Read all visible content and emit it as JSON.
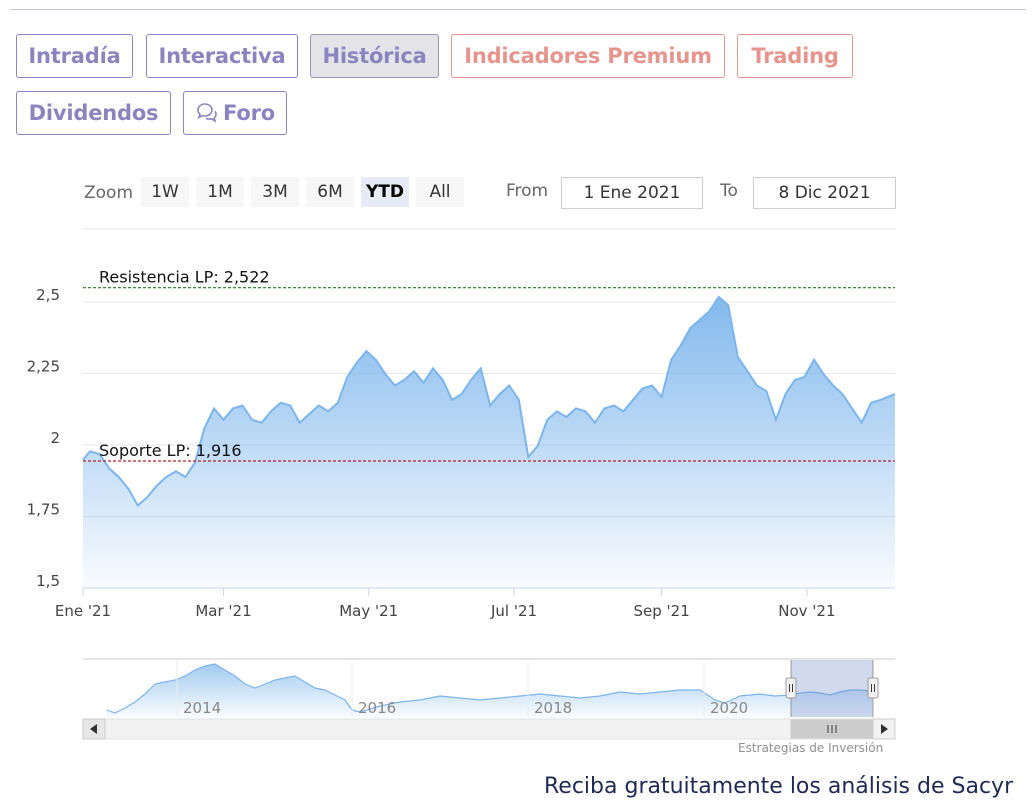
{
  "tabs": [
    {
      "label": "Intradía",
      "style": "purple"
    },
    {
      "label": "Interactiva",
      "style": "purple"
    },
    {
      "label": "Histórica",
      "style": "active"
    },
    {
      "label": "Indicadores Premium",
      "style": "orange"
    },
    {
      "label": "Trading",
      "style": "orange"
    },
    {
      "label": "Dividendos",
      "style": "purple"
    },
    {
      "label": "Foro",
      "style": "purple",
      "icon": "chat-bubbles-icon"
    }
  ],
  "range_selector": {
    "zoom_label": "Zoom",
    "buttons": [
      "1W",
      "1M",
      "3M",
      "6M",
      "YTD",
      "All"
    ],
    "selected": "YTD",
    "from_label": "From",
    "from_value": "1 Ene 2021",
    "to_label": "To",
    "to_value": "8 Dic 2021"
  },
  "chart_data": {
    "type": "area",
    "x_ticks": [
      "Ene '21",
      "Mar '21",
      "May '21",
      "Jul '21",
      "Sep '21",
      "Nov '21"
    ],
    "y_ticks": [
      "1,5",
      "1,75",
      "2",
      "2,25",
      "2,5"
    ],
    "ylim": [
      1.5,
      2.5
    ],
    "series": [
      {
        "x": [
          "2021-01-01",
          "2021-01-04",
          "2021-01-08",
          "2021-01-12",
          "2021-01-16",
          "2021-01-20",
          "2021-01-24",
          "2021-01-28",
          "2021-02-01",
          "2021-02-05",
          "2021-02-09",
          "2021-02-13",
          "2021-02-17",
          "2021-02-21",
          "2021-02-25",
          "2021-03-01",
          "2021-03-05",
          "2021-03-09",
          "2021-03-13",
          "2021-03-17",
          "2021-03-21",
          "2021-03-25",
          "2021-03-29",
          "2021-04-02",
          "2021-04-06",
          "2021-04-10",
          "2021-04-14",
          "2021-04-18",
          "2021-04-22",
          "2021-04-26",
          "2021-04-30",
          "2021-05-04",
          "2021-05-08",
          "2021-05-12",
          "2021-05-16",
          "2021-05-20",
          "2021-05-24",
          "2021-05-28",
          "2021-06-01",
          "2021-06-05",
          "2021-06-09",
          "2021-06-13",
          "2021-06-17",
          "2021-06-21",
          "2021-06-25",
          "2021-06-29",
          "2021-07-03",
          "2021-07-07",
          "2021-07-11",
          "2021-07-15",
          "2021-07-19",
          "2021-07-23",
          "2021-07-27",
          "2021-07-31",
          "2021-08-04",
          "2021-08-08",
          "2021-08-12",
          "2021-08-16",
          "2021-08-20",
          "2021-08-24",
          "2021-08-28",
          "2021-09-01",
          "2021-09-05",
          "2021-09-09",
          "2021-09-13",
          "2021-09-17",
          "2021-09-21",
          "2021-09-25",
          "2021-09-29",
          "2021-10-03",
          "2021-10-07",
          "2021-10-11",
          "2021-10-15",
          "2021-10-19",
          "2021-10-23",
          "2021-10-27",
          "2021-10-31",
          "2021-11-04",
          "2021-11-08",
          "2021-11-12",
          "2021-11-16",
          "2021-11-20",
          "2021-11-24",
          "2021-11-28",
          "2021-12-02",
          "2021-12-08"
        ],
        "values": [
          1.92,
          1.95,
          1.94,
          1.89,
          1.86,
          1.82,
          1.76,
          1.79,
          1.83,
          1.86,
          1.88,
          1.86,
          1.91,
          2.03,
          2.1,
          2.06,
          2.1,
          2.11,
          2.06,
          2.05,
          2.09,
          2.12,
          2.11,
          2.05,
          2.08,
          2.11,
          2.09,
          2.12,
          2.21,
          2.26,
          2.3,
          2.27,
          2.22,
          2.18,
          2.2,
          2.23,
          2.19,
          2.24,
          2.2,
          2.13,
          2.15,
          2.2,
          2.24,
          2.11,
          2.15,
          2.18,
          2.13,
          1.93,
          1.97,
          2.06,
          2.09,
          2.07,
          2.1,
          2.09,
          2.05,
          2.1,
          2.11,
          2.09,
          2.13,
          2.17,
          2.18,
          2.14,
          2.27,
          2.32,
          2.38,
          2.41,
          2.44,
          2.49,
          2.46,
          2.28,
          2.23,
          2.18,
          2.16,
          2.06,
          2.15,
          2.2,
          2.21,
          2.27,
          2.22,
          2.18,
          2.15,
          2.1,
          2.05,
          2.12,
          2.13,
          2.15
        ]
      }
    ],
    "plot_lines": [
      {
        "label": "Resistencia LP: 2,522",
        "value": 2.522,
        "color": "#1e7a1e"
      },
      {
        "label": "Soporte LP: 1,916",
        "value": 1.916,
        "color": "#b0202a"
      }
    ],
    "grid": true,
    "navigator": {
      "x_ticks": [
        "2014",
        "2016",
        "2018",
        "2020"
      ]
    },
    "credits": "Estrategias de Inversión"
  },
  "colors": {
    "line": "#7cb5ec",
    "tab_purple": "#8b84bf",
    "tab_orange": "#e5958d"
  },
  "footer": {
    "promo_text": "Reciba gratuitamente los análisis de Sacyr"
  }
}
